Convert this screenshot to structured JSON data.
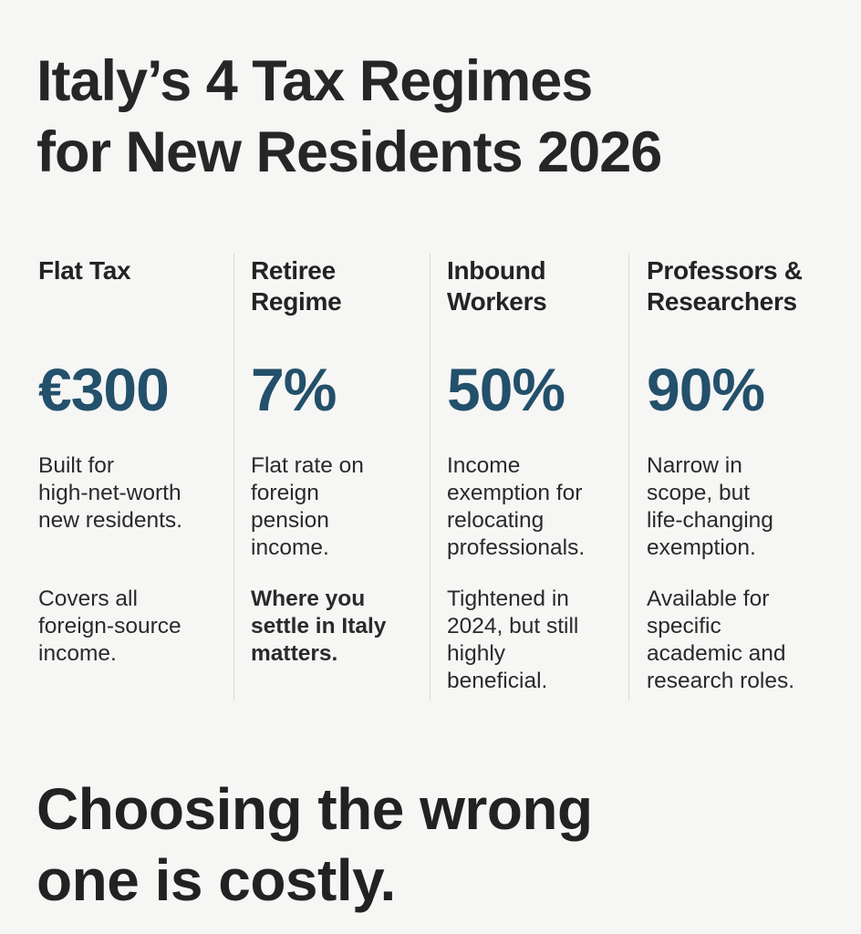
{
  "title": {
    "line1": "Italy’s 4 Tax Regimes",
    "line2": "for New Residents 2026"
  },
  "regimes": [
    {
      "heading": [
        "Flat Tax",
        ""
      ],
      "value": "€300",
      "desc1": [
        "Built for",
        "high-net-worth",
        "new residents."
      ],
      "desc2": [
        "Covers all",
        "foreign-source",
        "income."
      ]
    },
    {
      "heading": [
        "Retiree",
        "Regime"
      ],
      "value": "7%",
      "desc1": [
        "Flat rate on",
        "foreign",
        "pension",
        "income."
      ],
      "desc2": [
        "Where you",
        "settle in Italy",
        "matters."
      ]
    },
    {
      "heading": [
        "Inbound",
        "Workers"
      ],
      "value": "50%",
      "desc1": [
        "Income",
        "exemption for",
        "relocating",
        "professionals."
      ],
      "desc2": [
        "Tightened in",
        "2024, but still",
        "highly",
        "beneficial."
      ]
    },
    {
      "heading": [
        "Professors &",
        "Researchers"
      ],
      "value": "90%",
      "desc1": [
        "Narrow in",
        "scope, but",
        "life-changing",
        "exemption."
      ],
      "desc2": [
        "Available for",
        "specific",
        "academic and",
        "research roles."
      ]
    }
  ],
  "footer": {
    "line1": "Choosing the wrong",
    "line2": "one is costly."
  },
  "colors": {
    "accent": "#23506a",
    "text": "#262626",
    "background": "#f6f6f5",
    "divider": "#d9d9d6"
  }
}
